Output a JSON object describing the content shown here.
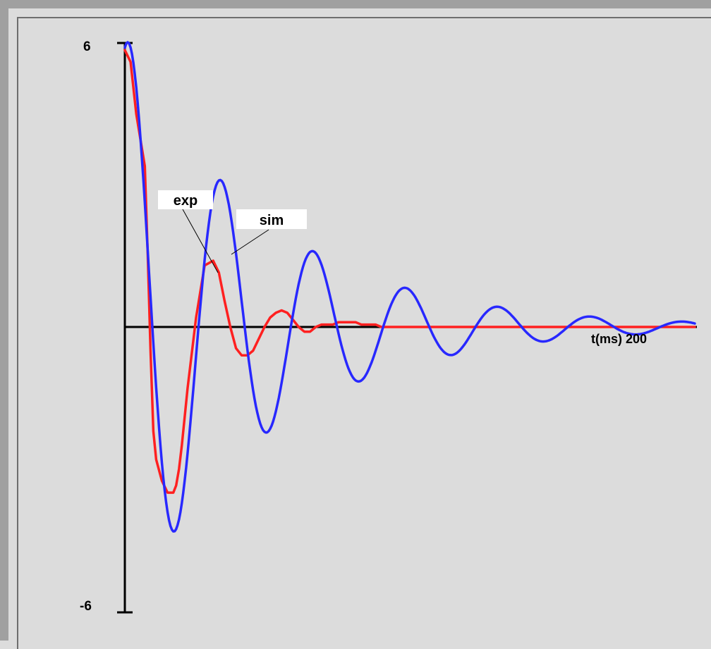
{
  "chart_data": {
    "type": "line",
    "ylim": [
      -6,
      6
    ],
    "xlim": [
      0,
      200
    ],
    "y_tick_labels": [
      "6",
      "-6"
    ],
    "x_axis_label": "t(ms) 200",
    "grid": false,
    "legend": "callout labels",
    "series": [
      {
        "name": "exp",
        "color": "#ff2020",
        "t": [
          0,
          2,
          4,
          7,
          8,
          9,
          10,
          11,
          13,
          15,
          17,
          18,
          19,
          20,
          22,
          25,
          28,
          31,
          33,
          35,
          37,
          39,
          41,
          43,
          45,
          47,
          49,
          51,
          53,
          55,
          57,
          59,
          61,
          63,
          65,
          67,
          69,
          71,
          73,
          75,
          77,
          79,
          81,
          83,
          85,
          88,
          90,
          95,
          100,
          110,
          120,
          200
        ],
        "y": [
          5.85,
          5.6,
          4.5,
          3.4,
          1.6,
          -0.5,
          -2.2,
          -2.8,
          -3.25,
          -3.5,
          -3.5,
          -3.35,
          -3.0,
          -2.5,
          -1.3,
          0.2,
          1.3,
          1.4,
          1.15,
          0.55,
          0.0,
          -0.45,
          -0.6,
          -0.6,
          -0.5,
          -0.25,
          0.0,
          0.2,
          0.3,
          0.35,
          0.3,
          0.15,
          0.0,
          -0.1,
          -0.1,
          0.0,
          0.05,
          0.05,
          0.05,
          0.1,
          0.1,
          0.1,
          0.1,
          0.05,
          0.05,
          0.05,
          0.0,
          0.0,
          0.0,
          0.0,
          0.0,
          0.0
        ]
      },
      {
        "name": "sim",
        "color": "#2828ff",
        "amplitude": 5.9,
        "decay_ms": 49,
        "period_ms": 32.4,
        "phase": -0.3,
        "t_end": 200,
        "samples": 400
      }
    ]
  }
}
